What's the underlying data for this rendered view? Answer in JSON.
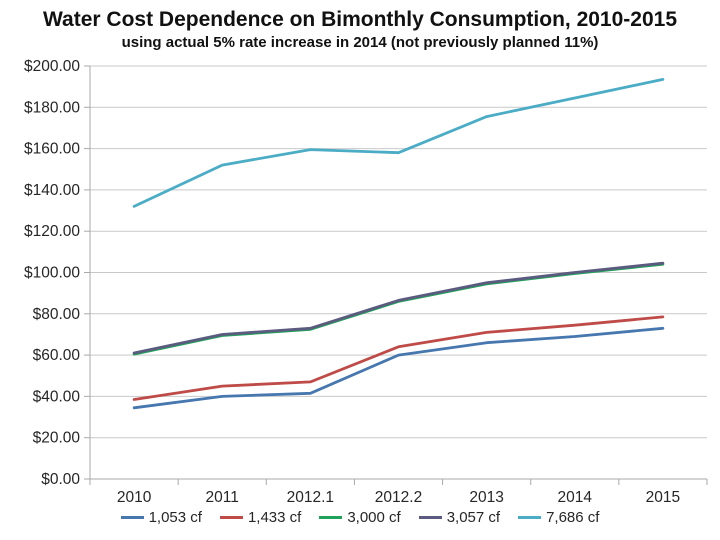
{
  "chart_data": {
    "type": "line",
    "title": "Water Cost Dependence on Bimonthly Consumption, 2010-2015",
    "subtitle": "using actual 5% rate increase in 2014 (not previously planned 11%)",
    "categories": [
      "2010",
      "2011",
      "2012.1",
      "2012.2",
      "2013",
      "2014",
      "2015"
    ],
    "series": [
      {
        "name": "1,053 cf",
        "color": "#4677AE",
        "values": [
          34.5,
          40,
          41.5,
          60,
          66,
          69,
          73
        ]
      },
      {
        "name": "1,433 cf",
        "color": "#BE4B48",
        "values": [
          38.5,
          45,
          47,
          64,
          71,
          74.5,
          78.5
        ]
      },
      {
        "name": "3,000 cf",
        "color": "#21A25A",
        "values": [
          60.5,
          69.5,
          72.5,
          86,
          94.5,
          99.5,
          104
        ]
      },
      {
        "name": "3,057 cf",
        "color": "#5B5B7F",
        "values": [
          61,
          70,
          73,
          86.5,
          95,
          100,
          104.5
        ]
      },
      {
        "name": "7,686 cf",
        "color": "#4BACC6",
        "values": [
          132,
          152,
          159.5,
          158,
          175.5,
          184.5,
          193.5
        ]
      }
    ],
    "ylim": [
      0,
      200
    ],
    "ytick_step": 20,
    "ytick_prefix": "$",
    "ytick_decimals": 2,
    "grid": "horizontal",
    "legend_position": "bottom"
  },
  "colors": {
    "gridline": "#C9C9C9",
    "axis": "#A9A9A9",
    "tick_text": "#262626"
  }
}
